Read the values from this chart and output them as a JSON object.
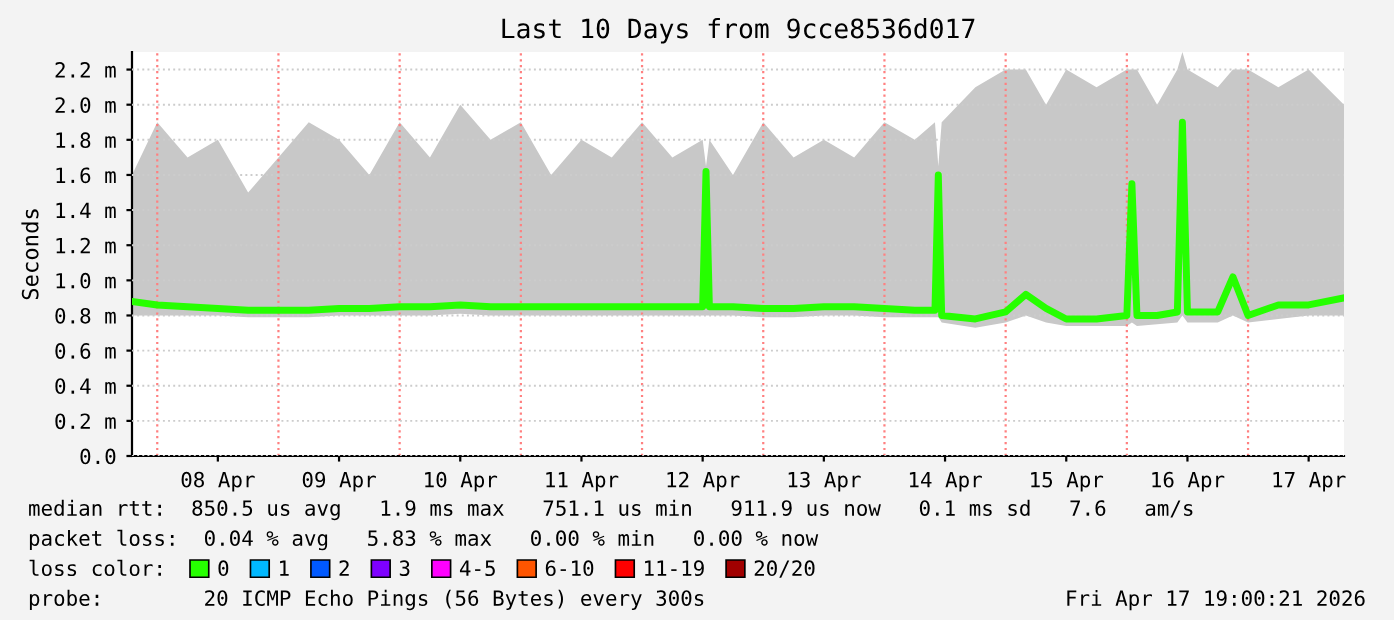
{
  "chart_data": {
    "type": "line",
    "title": "Last 10 Days from 9cce8536d017",
    "ylabel": "Seconds",
    "x": [
      "2026-04-07T19:00",
      "2026-04-08T00:00",
      "2026-04-08T06:00",
      "2026-04-08T12:00",
      "2026-04-08T18:00",
      "2026-04-09T00:00",
      "2026-04-09T06:00",
      "2026-04-09T12:00",
      "2026-04-09T18:00",
      "2026-04-10T00:00",
      "2026-04-10T06:00",
      "2026-04-10T12:00",
      "2026-04-10T18:00",
      "2026-04-11T00:00",
      "2026-04-11T06:00",
      "2026-04-11T12:00",
      "2026-04-11T18:00",
      "2026-04-12T00:00",
      "2026-04-12T06:00",
      "2026-04-12T12:00",
      "2026-04-12T12:40",
      "2026-04-12T13:20",
      "2026-04-12T18:00",
      "2026-04-13T00:00",
      "2026-04-13T06:00",
      "2026-04-13T12:00",
      "2026-04-13T18:00",
      "2026-04-14T00:00",
      "2026-04-14T06:00",
      "2026-04-14T10:00",
      "2026-04-14T10:40",
      "2026-04-14T11:20",
      "2026-04-14T18:00",
      "2026-04-15T00:00",
      "2026-04-15T04:00",
      "2026-04-15T08:00",
      "2026-04-15T12:00",
      "2026-04-15T18:00",
      "2026-04-16T00:00",
      "2026-04-16T01:00",
      "2026-04-16T02:00",
      "2026-04-16T06:00",
      "2026-04-16T10:00",
      "2026-04-16T11:00",
      "2026-04-16T12:00",
      "2026-04-16T18:00",
      "2026-04-16T21:00",
      "2026-04-17T00:00",
      "2026-04-17T06:00",
      "2026-04-17T12:00",
      "2026-04-17T19:00"
    ],
    "series": [
      {
        "name": "0",
        "color": "#26ff00",
        "values": [
          0.88,
          0.86,
          0.85,
          0.84,
          0.83,
          0.83,
          0.83,
          0.84,
          0.84,
          0.85,
          0.85,
          0.86,
          0.85,
          0.85,
          0.85,
          0.85,
          0.85,
          0.85,
          0.85,
          0.85,
          1.62,
          0.85,
          0.85,
          0.84,
          0.84,
          0.85,
          0.85,
          0.84,
          0.83,
          0.83,
          1.6,
          0.8,
          0.78,
          0.82,
          0.92,
          0.84,
          0.78,
          0.78,
          0.8,
          1.55,
          0.8,
          0.8,
          0.82,
          1.9,
          0.82,
          0.82,
          1.02,
          0.8,
          0.86,
          0.86,
          0.9
        ],
        "lower": [
          0.8,
          0.8,
          0.8,
          0.8,
          0.79,
          0.79,
          0.79,
          0.8,
          0.8,
          0.8,
          0.8,
          0.81,
          0.8,
          0.8,
          0.8,
          0.8,
          0.8,
          0.8,
          0.8,
          0.8,
          0.8,
          0.8,
          0.8,
          0.79,
          0.79,
          0.8,
          0.8,
          0.79,
          0.79,
          0.79,
          0.79,
          0.76,
          0.73,
          0.76,
          0.8,
          0.76,
          0.74,
          0.74,
          0.74,
          0.76,
          0.74,
          0.75,
          0.76,
          0.8,
          0.76,
          0.76,
          0.8,
          0.76,
          0.78,
          0.8,
          0.8
        ],
        "upper": [
          1.6,
          1.9,
          1.7,
          1.8,
          1.5,
          1.7,
          1.9,
          1.8,
          1.6,
          1.9,
          1.7,
          2.0,
          1.8,
          1.9,
          1.6,
          1.8,
          1.7,
          1.9,
          1.7,
          1.8,
          1.65,
          1.8,
          1.6,
          1.9,
          1.7,
          1.8,
          1.7,
          1.9,
          1.8,
          1.9,
          1.65,
          1.9,
          2.1,
          2.2,
          2.2,
          2.0,
          2.2,
          2.1,
          2.2,
          2.2,
          2.2,
          2.0,
          2.2,
          2.3,
          2.2,
          2.1,
          2.2,
          2.2,
          2.1,
          2.2,
          2.0
        ]
      },
      {
        "name": "1",
        "color": "#00b8ff",
        "values": [
          null,
          null,
          null,
          null,
          null,
          null,
          null,
          null,
          null,
          null,
          null,
          null,
          null,
          null,
          null,
          null,
          null,
          null,
          null,
          null,
          null,
          null,
          null,
          null,
          null,
          null,
          null,
          null,
          null,
          null,
          null,
          null,
          null,
          null,
          null,
          null,
          null,
          null,
          null,
          null,
          null,
          null,
          null,
          null,
          null,
          null,
          null,
          null,
          null,
          null,
          null
        ]
      },
      {
        "name": "2",
        "color": "#0059ff",
        "values": [
          null,
          null,
          null,
          null,
          null,
          null,
          null,
          null,
          null,
          null,
          null,
          null,
          null,
          null,
          null,
          null,
          null,
          null,
          null,
          null,
          null,
          null,
          null,
          null,
          null,
          null,
          null,
          null,
          null,
          null,
          null,
          null,
          null,
          null,
          null,
          null,
          null,
          null,
          null,
          null,
          null,
          null,
          null,
          null,
          null,
          null,
          null,
          null,
          null,
          null,
          null
        ]
      },
      {
        "name": "3",
        "color": "#7e00ff",
        "values": [
          null,
          null,
          null,
          null,
          null,
          null,
          null,
          null,
          null,
          null,
          null,
          null,
          null,
          null,
          null,
          null,
          null,
          null,
          null,
          null,
          null,
          null,
          null,
          null,
          null,
          null,
          null,
          null,
          null,
          null,
          null,
          null,
          null,
          null,
          null,
          null,
          null,
          null,
          null,
          null,
          null,
          null,
          null,
          null,
          null,
          null,
          null,
          null,
          null,
          null,
          null
        ]
      },
      {
        "name": "4-5",
        "color": "#ff00ff",
        "values": [
          null,
          null,
          null,
          null,
          null,
          null,
          null,
          null,
          null,
          null,
          null,
          null,
          null,
          null,
          null,
          null,
          null,
          null,
          null,
          null,
          null,
          null,
          null,
          null,
          null,
          null,
          null,
          null,
          null,
          null,
          null,
          null,
          null,
          null,
          null,
          null,
          null,
          null,
          null,
          null,
          null,
          null,
          null,
          null,
          null,
          null,
          null,
          null,
          null,
          null,
          null
        ]
      },
      {
        "name": "6-10",
        "color": "#ff5500",
        "values": [
          null,
          null,
          null,
          null,
          null,
          null,
          null,
          null,
          null,
          null,
          null,
          null,
          null,
          null,
          null,
          null,
          null,
          null,
          null,
          null,
          null,
          null,
          null,
          null,
          null,
          null,
          null,
          null,
          null,
          null,
          null,
          null,
          null,
          null,
          null,
          null,
          null,
          null,
          null,
          null,
          null,
          null,
          null,
          null,
          null,
          null,
          null,
          null,
          null,
          null,
          null
        ]
      },
      {
        "name": "11-19",
        "color": "#ff0000",
        "values": [
          null,
          null,
          null,
          null,
          null,
          null,
          null,
          null,
          null,
          null,
          null,
          null,
          null,
          null,
          null,
          null,
          null,
          null,
          null,
          null,
          null,
          null,
          null,
          null,
          null,
          null,
          null,
          null,
          null,
          null,
          null,
          null,
          null,
          null,
          null,
          null,
          null,
          null,
          null,
          null,
          null,
          null,
          null,
          null,
          null,
          null,
          null,
          null,
          null,
          null,
          null
        ]
      },
      {
        "name": "20/20",
        "color": "#a10000",
        "values": [
          null,
          null,
          null,
          null,
          null,
          null,
          null,
          null,
          null,
          null,
          null,
          null,
          null,
          null,
          null,
          null,
          null,
          null,
          null,
          null,
          null,
          null,
          null,
          null,
          null,
          null,
          null,
          null,
          null,
          null,
          null,
          null,
          null,
          null,
          null,
          null,
          null,
          null,
          null,
          null,
          null,
          null,
          null,
          null,
          null,
          null,
          null,
          null,
          null,
          null,
          null
        ]
      }
    ],
    "legend_title": "loss color:",
    "legend": "bottom",
    "grid": "y",
    "line_style": "solid",
    "marker": "none",
    "xlim": [
      "2026-04-07T19:00",
      "2026-04-17T19:00"
    ],
    "xticks": [
      {
        "value": "2026-04-08T12:00",
        "label": "08 Apr"
      },
      {
        "value": "2026-04-09T12:00",
        "label": "09 Apr"
      },
      {
        "value": "2026-04-10T12:00",
        "label": "10 Apr"
      },
      {
        "value": "2026-04-11T12:00",
        "label": "11 Apr"
      },
      {
        "value": "2026-04-12T12:00",
        "label": "12 Apr"
      },
      {
        "value": "2026-04-13T12:00",
        "label": "13 Apr"
      },
      {
        "value": "2026-04-14T12:00",
        "label": "14 Apr"
      },
      {
        "value": "2026-04-15T12:00",
        "label": "15 Apr"
      },
      {
        "value": "2026-04-16T12:00",
        "label": "16 Apr"
      },
      {
        "value": "2026-04-17T12:00",
        "label": "17 Apr"
      }
    ],
    "ylim": [
      0,
      2.3
    ],
    "yticks": [
      {
        "value": 0.0,
        "label": "0.0"
      },
      {
        "value": 0.2,
        "label": "0.2 m"
      },
      {
        "value": 0.4,
        "label": "0.4 m"
      },
      {
        "value": 0.6,
        "label": "0.6 m"
      },
      {
        "value": 0.8,
        "label": "0.8 m"
      },
      {
        "value": 1.0,
        "label": "1.0 m"
      },
      {
        "value": 1.2,
        "label": "1.2 m"
      },
      {
        "value": 1.4,
        "label": "1.4 m"
      },
      {
        "value": 1.6,
        "label": "1.6 m"
      },
      {
        "value": 1.8,
        "label": "1.8 m"
      },
      {
        "value": 2.0,
        "label": "2.0 m"
      },
      {
        "value": 2.2,
        "label": "2.2 m"
      }
    ],
    "ref_lines": [
      {
        "axis": "x",
        "value": "2026-04-08T00:00",
        "color": "#ff8080",
        "line_style": "dotted"
      },
      {
        "axis": "x",
        "value": "2026-04-09T00:00",
        "color": "#ff8080",
        "line_style": "dotted"
      },
      {
        "axis": "x",
        "value": "2026-04-10T00:00",
        "color": "#ff8080",
        "line_style": "dotted"
      },
      {
        "axis": "x",
        "value": "2026-04-11T00:00",
        "color": "#ff8080",
        "line_style": "dotted"
      },
      {
        "axis": "x",
        "value": "2026-04-12T00:00",
        "color": "#ff8080",
        "line_style": "dotted"
      },
      {
        "axis": "x",
        "value": "2026-04-13T00:00",
        "color": "#ff8080",
        "line_style": "dotted"
      },
      {
        "axis": "x",
        "value": "2026-04-14T00:00",
        "color": "#ff8080",
        "line_style": "dotted"
      },
      {
        "axis": "x",
        "value": "2026-04-15T00:00",
        "color": "#ff8080",
        "line_style": "dotted"
      },
      {
        "axis": "x",
        "value": "2026-04-16T00:00",
        "color": "#ff8080",
        "line_style": "dotted"
      },
      {
        "axis": "x",
        "value": "2026-04-17T00:00",
        "color": "#ff8080",
        "line_style": "dotted"
      }
    ],
    "annotations": [
      "median rtt:  850.5 us avg   1.9 ms max   751.1 us min   911.9 us now   0.1 ms sd   7.6   am/s",
      "packet loss:  0.04 % avg   5.83 % max   0.00 % min   0.00 % now",
      "probe:        20 ICMP Echo Pings (56 Bytes) every 300s",
      "Fri Apr 17 19:00:21 2026"
    ]
  }
}
